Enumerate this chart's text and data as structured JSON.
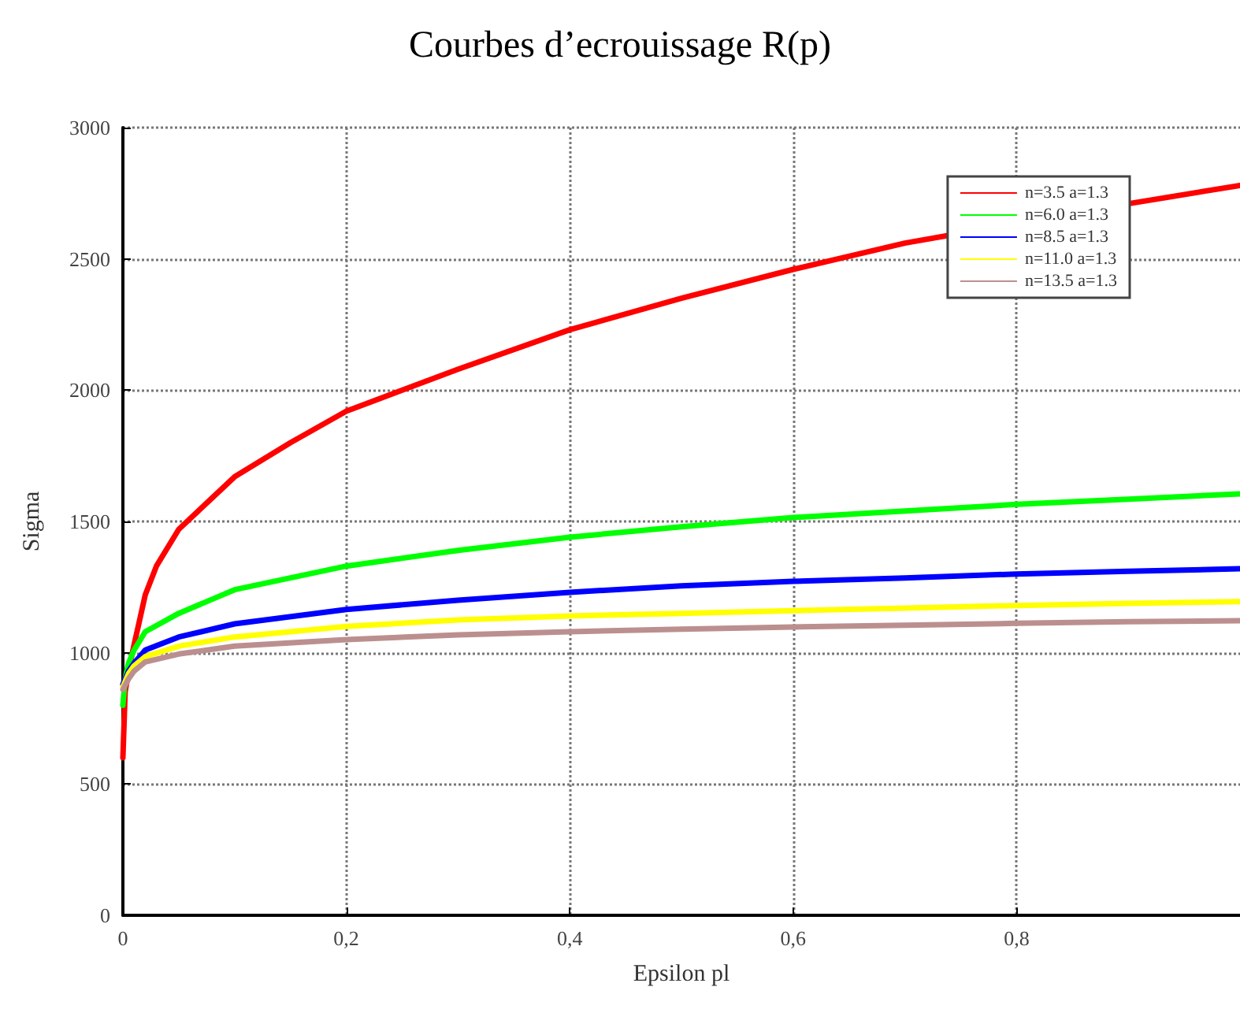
{
  "chart_data": {
    "type": "line",
    "title": "Courbes d’ecrouissage R(p)",
    "xlabel": "Epsilon pl",
    "ylabel": "Sigma",
    "xlim": [
      0,
      1
    ],
    "xticks": [
      0,
      {
        "value": 0.2,
        "label": "0,2"
      },
      {
        "value": 0.4,
        "label": "0,4"
      },
      {
        "value": 0.6,
        "label": "0,6"
      },
      {
        "value": 0.8,
        "label": "0,8"
      }
    ],
    "ylim": [
      0,
      3000
    ],
    "yticks": [
      0,
      500,
      1000,
      1500,
      2000,
      2500,
      3000
    ],
    "grid": true,
    "legend": "top right",
    "marker": "none",
    "line_style": "solid",
    "series": [
      {
        "name": "n=3.5 a=1.3",
        "color": "#ff0000",
        "x": [
          0,
          0.002,
          0.005,
          0.01,
          0.02,
          0.03,
          0.05,
          0.075,
          0.1,
          0.15,
          0.2,
          0.3,
          0.4,
          0.5,
          0.6,
          0.7,
          0.9,
          1.0
        ],
        "values": [
          600,
          850,
          930,
          1030,
          1220,
          1330,
          1470,
          1570,
          1670,
          1800,
          1920,
          2080,
          2230,
          2350,
          2460,
          2560,
          2710,
          2780
        ]
      },
      {
        "name": "n=6.0 a=1.3",
        "color": "#00ff00",
        "x": [
          0,
          0.002,
          0.005,
          0.01,
          0.02,
          0.05,
          0.1,
          0.2,
          0.3,
          0.4,
          0.5,
          0.6,
          0.7,
          0.8,
          0.9,
          1.0
        ],
        "values": [
          800,
          900,
          960,
          1010,
          1080,
          1150,
          1240,
          1330,
          1390,
          1440,
          1480,
          1515,
          1540,
          1565,
          1585,
          1605
        ]
      },
      {
        "name": "n=8.5 a=1.3",
        "color": "#0000ff",
        "x": [
          0,
          0.005,
          0.01,
          0.02,
          0.05,
          0.1,
          0.2,
          0.3,
          0.4,
          0.5,
          0.6,
          0.7,
          0.8,
          0.9,
          1.0
        ],
        "values": [
          880,
          930,
          960,
          1010,
          1060,
          1110,
          1165,
          1200,
          1230,
          1255,
          1272,
          1285,
          1300,
          1310,
          1320
        ]
      },
      {
        "name": "n=11.0 a=1.3",
        "color": "#ffff00",
        "x": [
          0,
          0.005,
          0.01,
          0.02,
          0.05,
          0.1,
          0.2,
          0.3,
          0.4,
          0.5,
          0.6,
          0.7,
          0.8,
          0.9,
          1.0
        ],
        "values": [
          870,
          920,
          950,
          985,
          1025,
          1060,
          1100,
          1125,
          1140,
          1150,
          1160,
          1170,
          1180,
          1188,
          1195
        ]
      },
      {
        "name": "n=13.5 a=1.3",
        "color": "#bc8f8f",
        "x": [
          0,
          0.005,
          0.01,
          0.02,
          0.05,
          0.1,
          0.2,
          0.3,
          0.4,
          0.5,
          0.6,
          0.7,
          0.8,
          0.9,
          1.0
        ],
        "values": [
          860,
          900,
          930,
          965,
          995,
          1025,
          1050,
          1068,
          1080,
          1090,
          1098,
          1105,
          1112,
          1118,
          1122
        ]
      }
    ]
  }
}
